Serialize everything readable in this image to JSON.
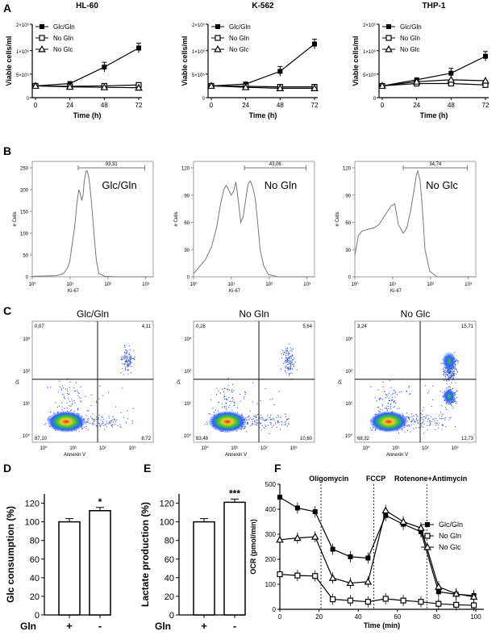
{
  "panel_labels": [
    "A",
    "B",
    "C",
    "D",
    "E",
    "F"
  ],
  "panelA": {
    "x_label": "Time (h)",
    "y_label": "Viable cells/ml",
    "x_ticks": [
      "0",
      "24",
      "48",
      "72"
    ],
    "y_ticks": [
      "0",
      "5×10⁵",
      "1×10⁶",
      "2×10⁶"
    ],
    "legend": [
      "Glc/Gln",
      "No Gln",
      "No Glc"
    ],
    "charts": [
      {
        "title": "HL-60",
        "x": [
          0,
          24,
          48,
          72
        ],
        "series": [
          {
            "name": "Glc/Gln",
            "values": [
              250000,
              300000,
              650000,
              1100000
            ]
          },
          {
            "name": "No Gln",
            "values": [
              250000,
              240000,
              250000,
              270000
            ]
          },
          {
            "name": "No Glc",
            "values": [
              250000,
              230000,
              220000,
              210000
            ]
          }
        ]
      },
      {
        "title": "K-562",
        "x": [
          0,
          24,
          48,
          72
        ],
        "series": [
          {
            "name": "Glc/Gln",
            "values": [
              250000,
              290000,
              560000,
              1250000
            ]
          },
          {
            "name": "No Gln",
            "values": [
              250000,
              240000,
              230000,
              230000
            ]
          },
          {
            "name": "No Glc",
            "values": [
              250000,
              220000,
              200000,
              200000
            ]
          }
        ]
      },
      {
        "title": "THP-1",
        "x": [
          0,
          24,
          48,
          72
        ],
        "series": [
          {
            "name": "Glc/Gln",
            "values": [
              250000,
              380000,
              520000,
              880000
            ]
          },
          {
            "name": "No Gln",
            "values": [
              250000,
              300000,
              300000,
              270000
            ]
          },
          {
            "name": "No Glc",
            "values": [
              250000,
              340000,
              380000,
              360000
            ]
          }
        ]
      }
    ]
  },
  "panelB": {
    "y_label": "# Cells",
    "x_label": "Ki-67",
    "x_ticks": [
      "10⁰",
      "10¹",
      "10²",
      "10³"
    ],
    "hists": [
      {
        "condition": "Glc/Gln",
        "gate": "93,31",
        "y_ticks": [
          "0",
          "50",
          "100",
          "150",
          "200",
          "250"
        ]
      },
      {
        "condition": "No Gln",
        "gate": "43,06",
        "y_ticks": [
          "0",
          "30",
          "60",
          "90",
          "120"
        ]
      },
      {
        "condition": "No Glc",
        "gate": "34,74",
        "y_ticks": [
          "0",
          "30",
          "60",
          "90",
          "120"
        ]
      }
    ]
  },
  "panelC": {
    "y_label": "PI",
    "x_label": "Annexin V",
    "plots": [
      {
        "condition": "Glc/Gln",
        "q": [
          "0,07",
          "4,11",
          "87,10",
          "8,72"
        ]
      },
      {
        "condition": "No Gln",
        "q": [
          "0,28",
          "5,64",
          "83,48",
          "10,60"
        ]
      },
      {
        "condition": "No Glc",
        "q": [
          "3,24",
          "15,71",
          "68,32",
          "12,73"
        ]
      }
    ]
  },
  "panelD": {
    "y_label": "Glc consumption (%)",
    "y_ticks": [
      "0",
      "20",
      "40",
      "60",
      "80",
      "100",
      "120"
    ],
    "x_title": "Gln",
    "categories": [
      "+",
      "-"
    ],
    "values": [
      100,
      112
    ],
    "sig": "*"
  },
  "panelE": {
    "y_label": "Lactate production (%)",
    "y_ticks": [
      "0",
      "20",
      "40",
      "60",
      "80",
      "100",
      "120"
    ],
    "x_title": "Gln",
    "categories": [
      "+",
      "-"
    ],
    "values": [
      100,
      121
    ],
    "sig": "***"
  },
  "panelF": {
    "y_label": "OCR (pmol/min)",
    "x_label": "Time (min)",
    "x_ticks": [
      "0",
      "20",
      "40",
      "60",
      "80",
      "100"
    ],
    "y_ticks": [
      "0",
      "100",
      "200",
      "300",
      "400",
      "500"
    ],
    "injections": [
      "Oligomycin",
      "FCCP",
      "Rotenone+Antimycin"
    ],
    "legend": [
      "Glc/Gln",
      "No Gln",
      "No Glc"
    ],
    "chart_data": {
      "type": "line",
      "x": [
        0,
        9,
        18,
        27,
        36,
        45,
        54,
        63,
        72,
        81,
        90,
        99
      ],
      "series": [
        {
          "name": "Glc/Gln",
          "values": [
            448,
            405,
            390,
            240,
            210,
            205,
            375,
            340,
            310,
            70,
            60,
            55
          ]
        },
        {
          "name": "No Gln",
          "values": [
            140,
            135,
            133,
            40,
            35,
            30,
            42,
            35,
            30,
            22,
            18,
            16
          ]
        },
        {
          "name": "No Glc",
          "values": [
            278,
            285,
            290,
            125,
            105,
            110,
            395,
            350,
            325,
            90,
            62,
            50
          ]
        }
      ]
    }
  }
}
